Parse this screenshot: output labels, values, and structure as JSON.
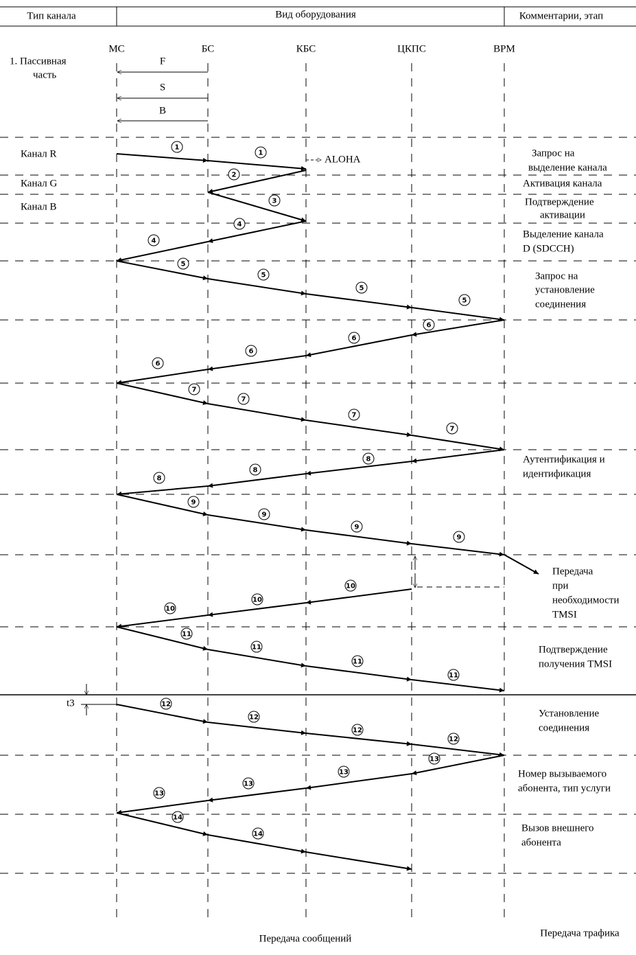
{
  "header": {
    "columns": [
      "Тип канала",
      "Вид оборудования",
      "Комментарии, этап"
    ]
  },
  "entities": [
    "МС",
    "БС",
    "КБС",
    "ЦКПС",
    "ВРМ"
  ],
  "passive": {
    "title": [
      "1. Пассивная",
      "часть"
    ],
    "channels": [
      "F",
      "S",
      "B"
    ]
  },
  "left_labels": [
    "Канал R",
    "Канал G",
    "Канал B",
    "t3"
  ],
  "aloha": "ALOHA",
  "messages": [
    [
      "1",
      "1"
    ],
    [
      "2"
    ],
    [
      "3"
    ],
    [
      "4",
      "4"
    ],
    [
      "5",
      "5",
      "5",
      "5"
    ],
    [
      "6",
      "6",
      "6",
      "6"
    ],
    [
      "7",
      "7",
      "7",
      "7"
    ],
    [
      "8",
      "8",
      "8"
    ],
    [
      "9",
      "9",
      "9",
      "9"
    ],
    [
      "10",
      "10",
      "10"
    ],
    [
      "11",
      "11",
      "11",
      "11"
    ],
    [
      "12",
      "12",
      "12",
      "12"
    ],
    [
      "13",
      "13",
      "13",
      "13"
    ],
    [
      "14",
      "14"
    ]
  ],
  "comments": [
    [
      "Запрос на",
      "выделение канала"
    ],
    [
      "Активация канала"
    ],
    [
      "Подтверждение",
      "активации"
    ],
    [
      "Выделение канала",
      "D (SDCCH)"
    ],
    [
      "Запрос на",
      "установление",
      "соединения"
    ],
    [
      "Аутентификация и",
      "идентификация"
    ],
    [
      "Передача",
      "при",
      "необходимости",
      "TMSI"
    ],
    [
      "Подтверждение",
      "получения TMSI"
    ],
    [
      "Установление",
      "соединения"
    ],
    [
      "Номер вызываемого",
      "абонента, тип услуги"
    ],
    [
      "Вызов внешнего",
      "абонента"
    ]
  ],
  "footer": [
    "Передача сообщений",
    "Передача трафика"
  ]
}
